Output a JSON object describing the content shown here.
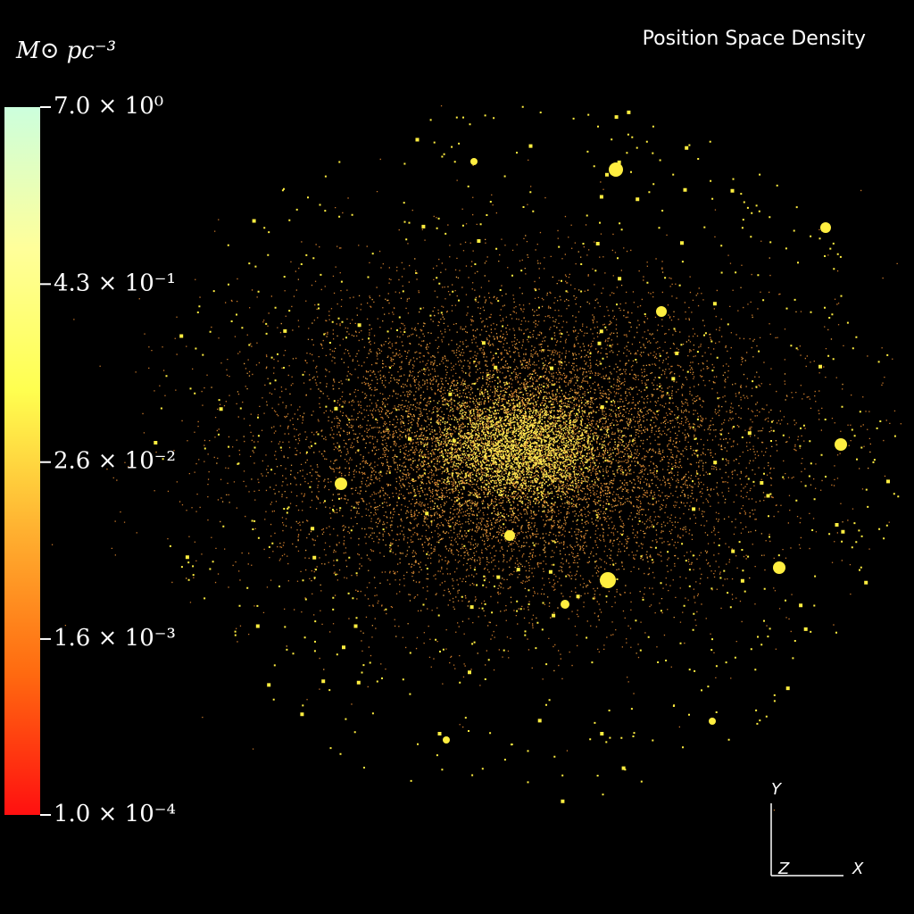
{
  "chart_data": {
    "type": "density-render",
    "title": "Position Space Density",
    "colorbar": {
      "label": "M⊙ pc⁻³",
      "scale": "log",
      "lim": [
        0.0001,
        7.0
      ],
      "ticks": [
        {
          "value": 7.0,
          "label": "7.0 × 10⁰"
        },
        {
          "value": 0.43,
          "label": "4.3 × 10⁻¹"
        },
        {
          "value": 0.026,
          "label": "2.6 × 10⁻²"
        },
        {
          "value": 0.0016,
          "label": "1.6 × 10⁻³"
        },
        {
          "value": 0.0001,
          "label": "1.0 × 10⁻⁴"
        }
      ],
      "colors": [
        "#ff1010",
        "#ff6a10",
        "#ffb030",
        "#ffff50",
        "#ffff9a",
        "#ccffdd"
      ]
    },
    "axes_triad": [
      "Y",
      "Z",
      "X"
    ]
  }
}
